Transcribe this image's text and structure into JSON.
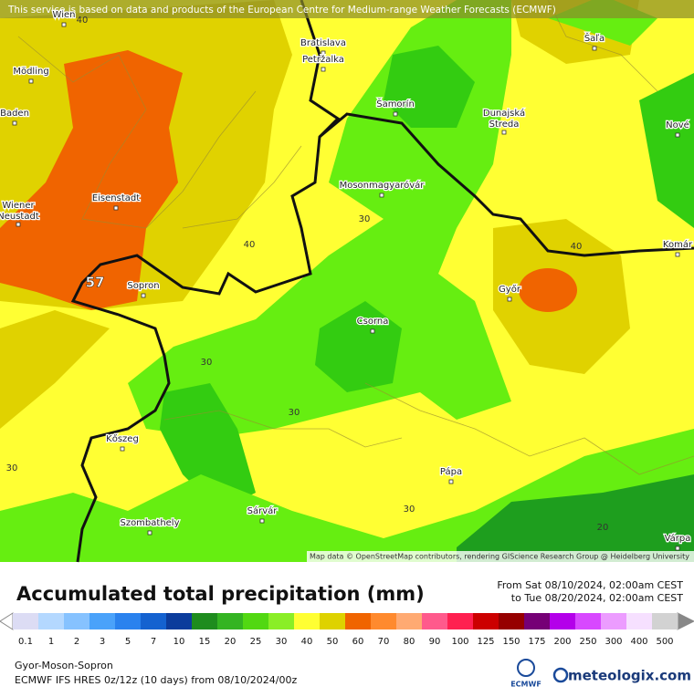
{
  "banner": "This service is based on data and products of the European Centre for Medium-range Weather Forecasts (ECMWF)",
  "attribution": "Map data © OpenStreetMap contributors, rendering GIScience Research Group @ Heidelberg University",
  "cities": [
    "Mödling",
    "Baden",
    "Eisenstadt",
    "Wiener",
    "Neustadt",
    "Sopron",
    "Kőszeg",
    "Szombathely",
    "Sárvár",
    "Csorna",
    "Pápa",
    "Győr",
    "Mosonmagyaróvár",
    "Bratislava",
    "Petržalka",
    "Šamorín",
    "Dunajská",
    "Streda",
    "Šaľa",
    "Nové",
    "Komár",
    "Várpa",
    "Wien"
  ],
  "contour_labels": [
    40,
    40,
    30,
    40,
    30,
    30,
    30,
    30,
    20
  ],
  "max_label": 57,
  "title": "Accumulated total precipitation (mm)",
  "period_from": "From Sat 08/10/2024, 02:00am CEST",
  "period_to": "to Tue 08/20/2024, 02:00am CEST",
  "legend": {
    "values": [
      0.1,
      1,
      2,
      3,
      5,
      7,
      10,
      15,
      20,
      25,
      30,
      40,
      50,
      60,
      70,
      80,
      90,
      100,
      125,
      150,
      175,
      200,
      250,
      300,
      400,
      500
    ],
    "colors": [
      "#dcdcf4",
      "#b4d8ff",
      "#86c2ff",
      "#4aa2fa",
      "#2a82ee",
      "#1462d0",
      "#0c3c9c",
      "#1e8c1e",
      "#34b422",
      "#52d812",
      "#8aee26",
      "#ffff33",
      "#ded200",
      "#f06400",
      "#ff8a2e",
      "#ffaa72",
      "#ff5a8c",
      "#ff2050",
      "#cc0000",
      "#960000",
      "#760076",
      "#b400ea",
      "#d848ff",
      "#ec9cff",
      "#f6e0ff",
      "#d2d2d2"
    ]
  },
  "region": "Gyor-Moson-Sopron",
  "model": "ECMWF IFS HRES 0z/12z (10 days) from  08/10/2024/00z",
  "logo_left": "ECMWF",
  "logo_right": "meteologix.com"
}
